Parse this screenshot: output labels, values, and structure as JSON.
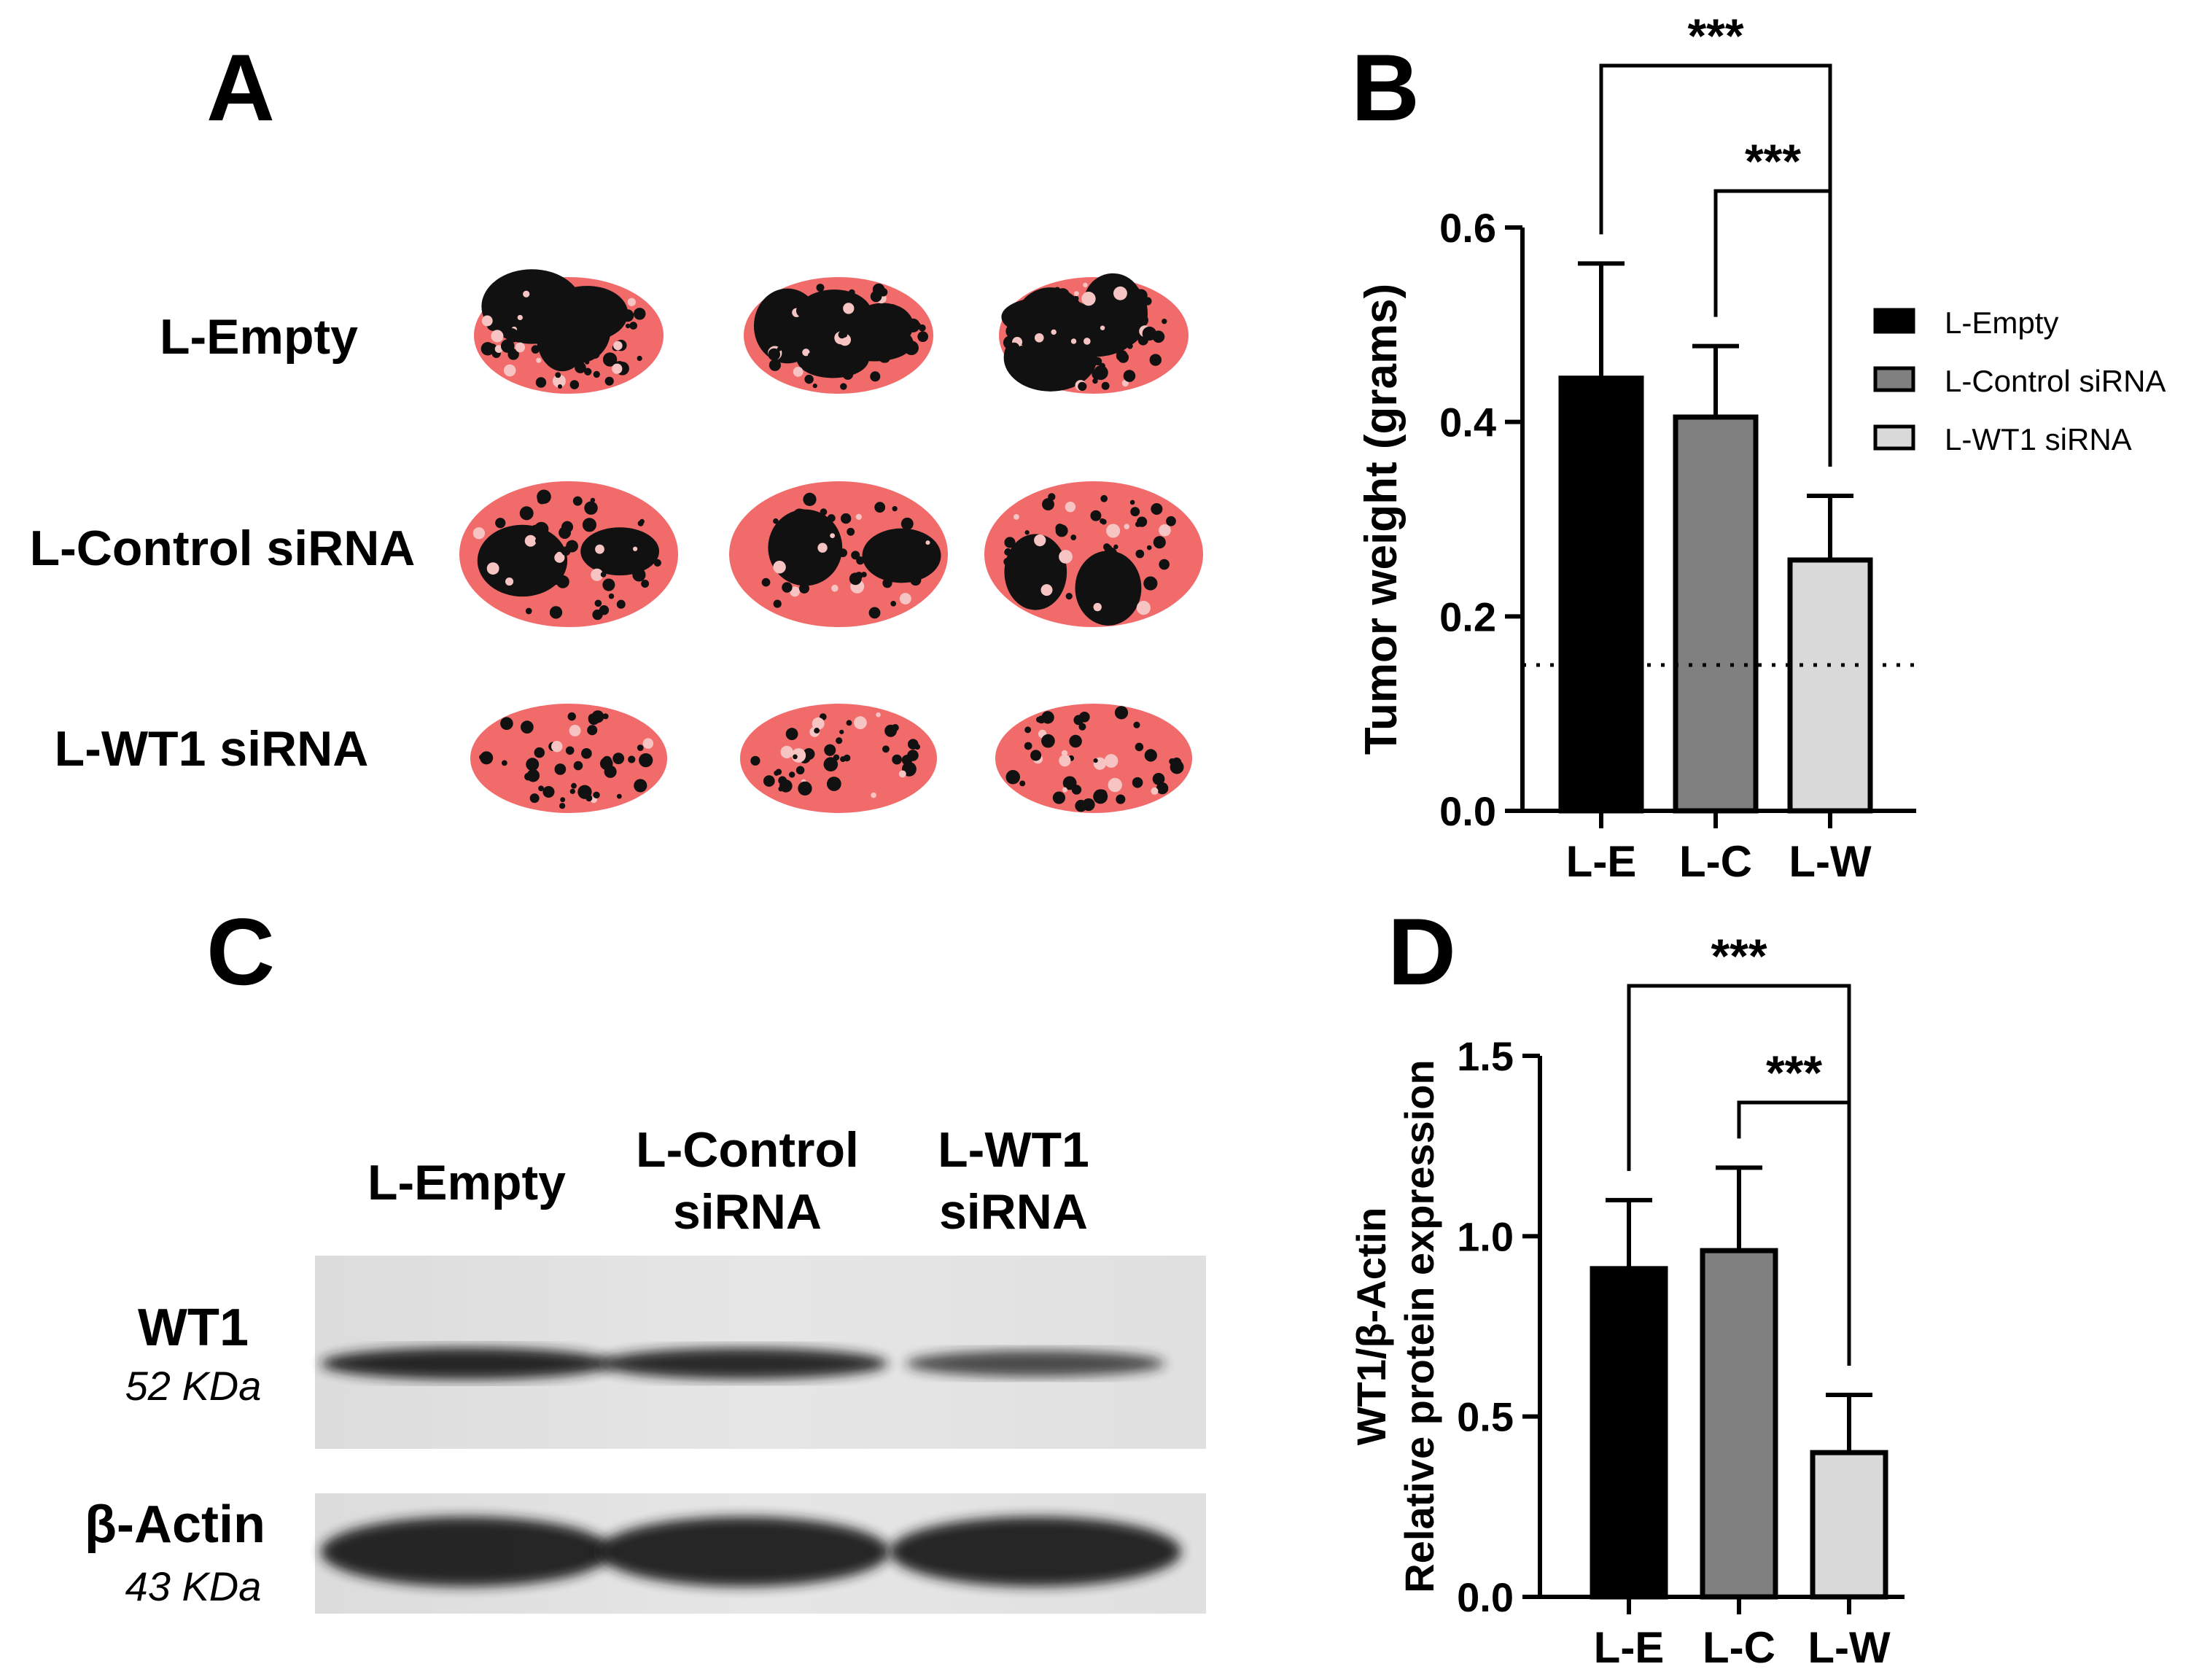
{
  "panels": {
    "a": "A",
    "b": "B",
    "c": "C",
    "d": "D"
  },
  "panel_a": {
    "rows": [
      {
        "label": "L-Empty",
        "tone": "mostly-black"
      },
      {
        "label": "L-Control siRNA",
        "tone": "mixed"
      },
      {
        "label": "L-WT1 siRNA",
        "tone": "mostly-pink"
      }
    ]
  },
  "panel_c": {
    "lanes": [
      {
        "line1": "L-Empty",
        "line2": ""
      },
      {
        "line1": "L-Control",
        "line2": "siRNA"
      },
      {
        "line1": "L-WT1",
        "line2": "siRNA"
      }
    ],
    "blots": [
      {
        "protein": "WT1",
        "size": "52 KDa",
        "relative_intensity": [
          1.0,
          0.95,
          0.55
        ]
      },
      {
        "protein": "β-Actin",
        "size": "43 KDa",
        "relative_intensity": [
          1.0,
          1.0,
          1.0
        ]
      }
    ]
  },
  "colors": {
    "l_empty": "#000000",
    "l_control": "#808080",
    "l_wt1": "#d9d9d9",
    "tumor_pink": "#f26b6b",
    "tumor_dark": "#111111"
  },
  "chart_data": [
    {
      "panel": "B",
      "type": "bar",
      "categories": [
        "L-E",
        "L-C",
        "L-W"
      ],
      "values": [
        0.445,
        0.405,
        0.258
      ],
      "errors": [
        0.118,
        0.073,
        0.066
      ],
      "ylabel": "Tumor weight (grams)",
      "ylabel_line2": "",
      "ylim": [
        0,
        0.6
      ],
      "yticks": [
        "0.0",
        "0.2",
        "0.4",
        "0.6"
      ],
      "reference_line": 0.15,
      "legend": [
        "L-Empty",
        "L-Control siRNA",
        "L-WT1 siRNA"
      ],
      "legend_position": "right",
      "significance": [
        {
          "from": 0,
          "to": 2,
          "label": "***"
        },
        {
          "from": 1,
          "to": 2,
          "label": "***"
        }
      ]
    },
    {
      "panel": "D",
      "type": "bar",
      "categories": [
        "L-E",
        "L-C",
        "L-W"
      ],
      "values": [
        0.91,
        0.96,
        0.4
      ],
      "errors": [
        0.19,
        0.23,
        0.16
      ],
      "ylabel": "WT1/β-Actin",
      "ylabel_line2": "Relative protein expression",
      "ylim": [
        0,
        1.5
      ],
      "yticks": [
        "0.0",
        "0.5",
        "1.0",
        "1.5"
      ],
      "significance": [
        {
          "from": 0,
          "to": 2,
          "label": "***"
        },
        {
          "from": 1,
          "to": 2,
          "label": "***"
        }
      ]
    }
  ]
}
